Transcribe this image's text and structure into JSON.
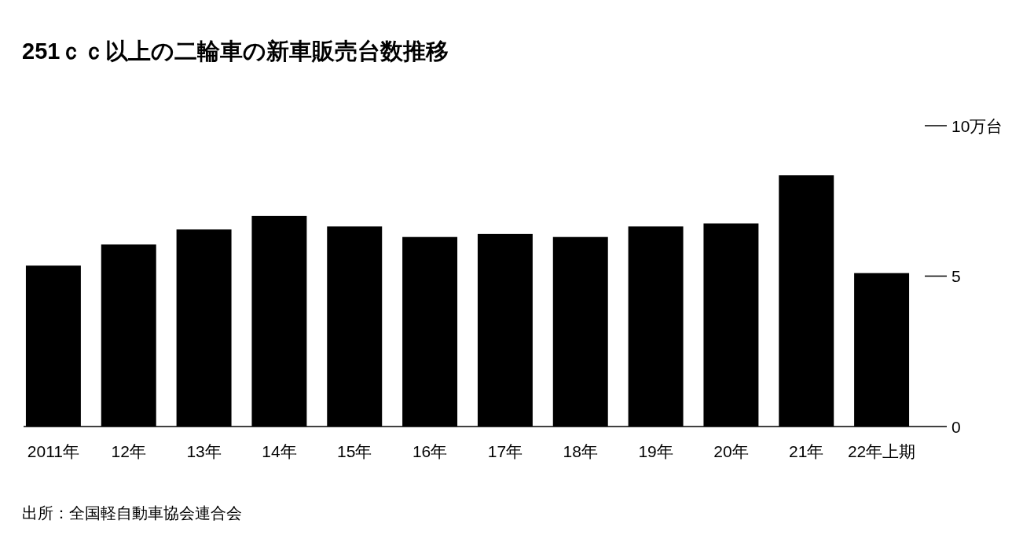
{
  "chart_data": {
    "type": "bar",
    "title": "251ｃｃ以上の二輪車の新車販売台数推移",
    "categories": [
      "2011年",
      "12年",
      "13年",
      "14年",
      "15年",
      "16年",
      "17年",
      "18年",
      "19年",
      "20年",
      "21年",
      "22年上期"
    ],
    "values": [
      5.35,
      6.05,
      6.55,
      7.0,
      6.65,
      6.3,
      6.4,
      6.3,
      6.65,
      6.75,
      8.35,
      5.1
    ],
    "color": "#000000",
    "ylim": [
      0,
      10
    ],
    "yticks": [
      0,
      5,
      {
        "value": 10,
        "label": "10万台"
      }
    ],
    "annotations": [
      "出所：全国軽自動車協会連合会"
    ]
  }
}
